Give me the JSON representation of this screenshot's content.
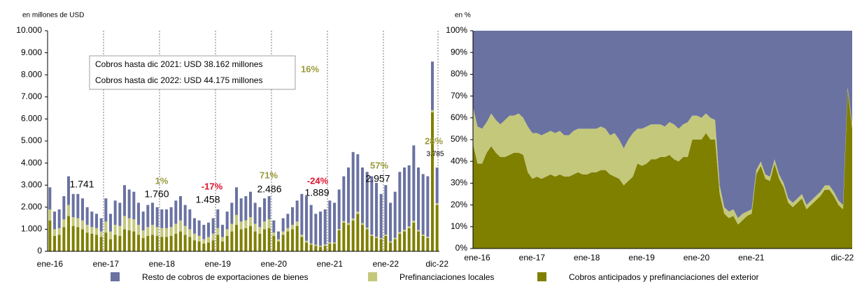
{
  "chart_data": [
    {
      "type": "bar",
      "stacked": true,
      "ylabel": "en millones de USD",
      "categories": [
        "ene-16",
        null,
        null,
        null,
        null,
        null,
        null,
        null,
        null,
        null,
        null,
        null,
        "ene-17",
        null,
        null,
        null,
        null,
        null,
        null,
        null,
        null,
        null,
        null,
        null,
        "ene-18",
        null,
        null,
        null,
        null,
        null,
        null,
        null,
        null,
        null,
        null,
        null,
        "ene-19",
        null,
        null,
        null,
        null,
        null,
        null,
        null,
        null,
        null,
        null,
        null,
        "ene-20",
        null,
        null,
        null,
        null,
        null,
        null,
        null,
        null,
        null,
        null,
        null,
        "ene-21",
        null,
        null,
        null,
        null,
        null,
        null,
        null,
        null,
        null,
        null,
        null,
        "ene-22",
        null,
        null,
        null,
        null,
        null,
        null,
        null,
        null,
        null,
        null,
        "dic-22"
      ],
      "ylim": [
        0,
        10000
      ],
      "yticks": [
        0,
        {
          "value": 1000,
          "label": "1.000"
        },
        {
          "value": 2000,
          "label": "2.000"
        },
        {
          "value": 3000,
          "label": "3.000"
        },
        {
          "value": 4000,
          "label": "4.000"
        },
        {
          "value": 5000,
          "label": "5.000"
        },
        {
          "value": 6000,
          "label": "6.000"
        },
        {
          "value": 7000,
          "label": "7.000"
        },
        {
          "value": 8000,
          "label": "8.000"
        },
        {
          "value": 9000,
          "label": "9.000"
        },
        {
          "value": 10000,
          "label": "10.000"
        }
      ],
      "series": [
        {
          "name": "Cobros anticipados y prefinanciaciones del exterior",
          "color": "#7f7f00",
          "values": [
            1400,
            700,
            750,
            1100,
            1600,
            1150,
            1100,
            1000,
            850,
            800,
            750,
            650,
            850,
            550,
            750,
            700,
            1000,
            950,
            900,
            750,
            600,
            700,
            750,
            700,
            650,
            650,
            700,
            800,
            900,
            750,
            650,
            500,
            450,
            350,
            400,
            500,
            750,
            450,
            700,
            900,
            1200,
            1000,
            1050,
            1150,
            900,
            800,
            1000,
            1050,
            700,
            450,
            750,
            900,
            1000,
            1150,
            650,
            400,
            300,
            250,
            200,
            250,
            350,
            350,
            950,
            1300,
            1200,
            1400,
            1700,
            1200,
            1000,
            700,
            600,
            550,
            700,
            400,
            550,
            800,
            900,
            1050,
            1300,
            900,
            700,
            600,
            6300,
            2100
          ]
        },
        {
          "name": "Prefinanciaciones locales",
          "color": "#c4c87a",
          "values": [
            500,
            300,
            300,
            350,
            500,
            400,
            400,
            400,
            350,
            300,
            300,
            250,
            500,
            350,
            450,
            450,
            600,
            550,
            550,
            450,
            350,
            400,
            450,
            400,
            400,
            400,
            400,
            450,
            500,
            400,
            350,
            300,
            250,
            200,
            250,
            300,
            300,
            200,
            300,
            350,
            450,
            350,
            350,
            400,
            350,
            300,
            350,
            400,
            150,
            100,
            150,
            150,
            200,
            200,
            100,
            80,
            60,
            50,
            50,
            60,
            50,
            50,
            60,
            70,
            80,
            90,
            100,
            80,
            70,
            60,
            60,
            50,
            60,
            50,
            60,
            70,
            80,
            80,
            90,
            70,
            60,
            60,
            100,
            80
          ]
        },
        {
          "name": "Resto de cobros de exportaciones de bienes",
          "color": "#6a72a2",
          "values": [
            1000,
            800,
            850,
            1050,
            1300,
            1050,
            1100,
            1000,
            800,
            700,
            650,
            600,
            1050,
            800,
            1100,
            1050,
            1400,
            1300,
            1250,
            1000,
            850,
            1000,
            1000,
            900,
            850,
            850,
            900,
            1050,
            1100,
            950,
            900,
            700,
            700,
            650,
            650,
            700,
            850,
            550,
            800,
            950,
            1250,
            1050,
            1100,
            1150,
            950,
            900,
            1050,
            1050,
            550,
            350,
            600,
            650,
            800,
            950,
            1850,
            2020,
            1740,
            1400,
            1550,
            1590,
            1900,
            1800,
            1790,
            2030,
            2520,
            3010,
            2600,
            2520,
            2530,
            2640,
            2440,
            2000,
            2240,
            1750,
            2090,
            2730,
            2820,
            2770,
            3410,
            2830,
            2740,
            2740,
            2200,
            1620
          ]
        }
      ],
      "annotations": [
        "1.741",
        "1%",
        "1.760",
        "-17%",
        "1.458",
        "71%",
        "2.486",
        "-24%",
        "1.889",
        "57%",
        "2.957",
        "16%",
        "28%",
        "3.785"
      ],
      "annotation_box": [
        "Cobros hasta dic 2021: USD 38.162 millones",
        "Cobros hasta dic 2022: USD 44.175 millones"
      ]
    },
    {
      "type": "area",
      "stacked": true,
      "ylabel": "en %",
      "categories": [
        "ene-16",
        null,
        null,
        null,
        null,
        null,
        null,
        null,
        null,
        null,
        null,
        null,
        "ene-17",
        null,
        null,
        null,
        null,
        null,
        null,
        null,
        null,
        null,
        null,
        null,
        "ene-18",
        null,
        null,
        null,
        null,
        null,
        null,
        null,
        null,
        null,
        null,
        null,
        "ene-19",
        null,
        null,
        null,
        null,
        null,
        null,
        null,
        null,
        null,
        null,
        null,
        "ene-20",
        null,
        null,
        null,
        null,
        null,
        null,
        null,
        null,
        null,
        null,
        null,
        "ene-21",
        null,
        null,
        null,
        null,
        null,
        null,
        null,
        null,
        null,
        null,
        null,
        null,
        null,
        null,
        null,
        null,
        null,
        null,
        null,
        null,
        null,
        null,
        "dic-22"
      ],
      "ylim": [
        0,
        100
      ],
      "yticks": [
        {
          "value": 0,
          "label": "0%"
        },
        {
          "value": 10,
          "label": "10%"
        },
        {
          "value": 20,
          "label": "20%"
        },
        {
          "value": 30,
          "label": "30%"
        },
        {
          "value": 40,
          "label": "40%"
        },
        {
          "value": 50,
          "label": "50%"
        },
        {
          "value": 60,
          "label": "60%"
        },
        {
          "value": 70,
          "label": "70%"
        },
        {
          "value": 80,
          "label": "80%"
        },
        {
          "value": 90,
          "label": "90%"
        },
        {
          "value": 100,
          "label": "100%"
        }
      ],
      "series": [
        {
          "name": "Cobros anticipados y prefinanciaciones del exterior",
          "color": "#7f7f00",
          "values": [
            48,
            39,
            39,
            44,
            47,
            44,
            42,
            42,
            43,
            44,
            44,
            43,
            35,
            32,
            33,
            32,
            33,
            34,
            33,
            34,
            33,
            33,
            34,
            35,
            34,
            34,
            35,
            35,
            36,
            36,
            34,
            33,
            32,
            29,
            31,
            33,
            39,
            38,
            39,
            41,
            41,
            42,
            42,
            43,
            41,
            40,
            42,
            42,
            50,
            50,
            50,
            53,
            50,
            50,
            25,
            16,
            14,
            15,
            11,
            13,
            15,
            16,
            34,
            38,
            32,
            31,
            39,
            32,
            28,
            21,
            19,
            21,
            23,
            18,
            20,
            22,
            24,
            27,
            27,
            24,
            20,
            18,
            73,
            55
          ]
        },
        {
          "name": "Prefinanciaciones locales",
          "color": "#c4c87a",
          "values": [
            17,
            17,
            16,
            14,
            15,
            15,
            15,
            17,
            18,
            17,
            18,
            17,
            21,
            21,
            20,
            20,
            20,
            20,
            20,
            20,
            19,
            19,
            20,
            20,
            21,
            21,
            20,
            20,
            20,
            19,
            18,
            20,
            18,
            17,
            19,
            20,
            16,
            17,
            17,
            16,
            16,
            15,
            14,
            15,
            16,
            15,
            15,
            16,
            11,
            11,
            10,
            9,
            10,
            9,
            4,
            3,
            3,
            3,
            3,
            3,
            2,
            2,
            2,
            2,
            2,
            2,
            2,
            2,
            2,
            2,
            2,
            2,
            2,
            2,
            2,
            2,
            2,
            2,
            2,
            2,
            2,
            2,
            1,
            2
          ]
        },
        {
          "name": "Resto de cobros de exportaciones de bienes",
          "color": "#6a72a2",
          "values": [
            35,
            44,
            45,
            42,
            38,
            41,
            43,
            41,
            39,
            39,
            38,
            40,
            44,
            47,
            47,
            48,
            47,
            46,
            47,
            46,
            48,
            48,
            46,
            45,
            45,
            45,
            45,
            45,
            44,
            45,
            48,
            47,
            50,
            54,
            50,
            47,
            45,
            45,
            44,
            43,
            43,
            43,
            44,
            42,
            43,
            45,
            43,
            42,
            39,
            39,
            40,
            38,
            40,
            41,
            71,
            81,
            83,
            82,
            86,
            84,
            83,
            82,
            64,
            60,
            66,
            67,
            59,
            66,
            70,
            77,
            79,
            77,
            75,
            80,
            78,
            76,
            74,
            71,
            71,
            74,
            78,
            80,
            26,
            43
          ]
        }
      ]
    }
  ]
}
